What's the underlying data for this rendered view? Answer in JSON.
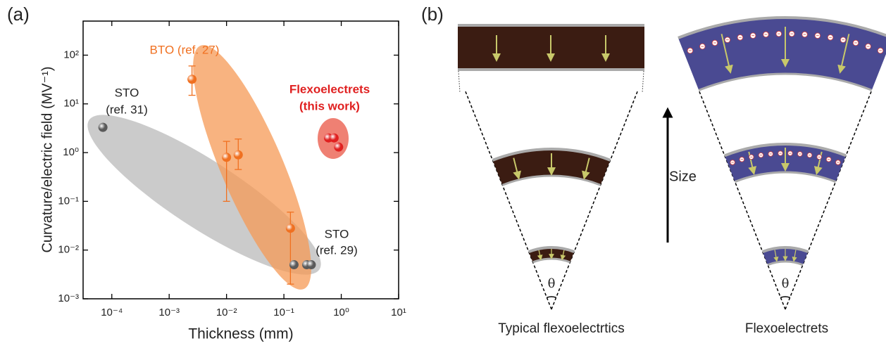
{
  "chart_data": {
    "type": "scatter",
    "panel_label": "(a)",
    "xlabel": "Thickness (mm)",
    "ylabel": "Curvature/electric field (MV⁻¹)",
    "xscale": "log",
    "yscale": "log",
    "xlim": [
      3.16e-05,
      10
    ],
    "ylim": [
      0.001,
      500
    ],
    "xticks": [
      {
        "value": 0.0001,
        "label": "10⁻⁴"
      },
      {
        "value": 0.001,
        "label": "10⁻³"
      },
      {
        "value": 0.01,
        "label": "10⁻²"
      },
      {
        "value": 0.1,
        "label": "10⁻¹"
      },
      {
        "value": 1,
        "label": "10⁰"
      },
      {
        "value": 10,
        "label": "10¹"
      }
    ],
    "yticks": [
      {
        "value": 0.001,
        "label": "10⁻³"
      },
      {
        "value": 0.01,
        "label": "10⁻²"
      },
      {
        "value": 0.1,
        "label": "10⁻¹"
      },
      {
        "value": 1,
        "label": "10⁰"
      },
      {
        "value": 10,
        "label": "10¹"
      },
      {
        "value": 100,
        "label": "10²"
      }
    ],
    "series": [
      {
        "label_lines": [
          "STO",
          "(ref. 31)"
        ],
        "color": "#5a5a5a",
        "x": [
          7e-05
        ],
        "values": [
          3.3
        ]
      },
      {
        "label_lines": [
          "BTO (ref. 27)"
        ],
        "color": "#f07020",
        "x": [
          0.0025,
          0.01,
          0.016,
          0.13
        ],
        "values": [
          32,
          0.8,
          0.9,
          0.028
        ],
        "error_low": [
          15,
          0.1,
          0.45,
          0.002
        ],
        "error_high": [
          60,
          1.7,
          1.9,
          0.06
        ]
      },
      {
        "label_lines": [
          "Flexoelectrets",
          "(this work)"
        ],
        "color": "#e02020",
        "x": [
          0.6,
          0.75,
          0.9
        ],
        "values": [
          2.0,
          2.0,
          1.3
        ]
      },
      {
        "label_lines": [
          "STO",
          "(ref. 29)"
        ],
        "color": "#5a5a5a",
        "x": [
          0.15,
          0.25,
          0.3
        ],
        "values": [
          0.005,
          0.005,
          0.005
        ]
      }
    ]
  },
  "panel_b": {
    "label": "(b)",
    "size_label": "Size",
    "left": {
      "angle": "θ",
      "caption": "Typical flexoelectrtics"
    },
    "right": {
      "angle": "θ",
      "caption": "Flexoelectrets"
    }
  }
}
